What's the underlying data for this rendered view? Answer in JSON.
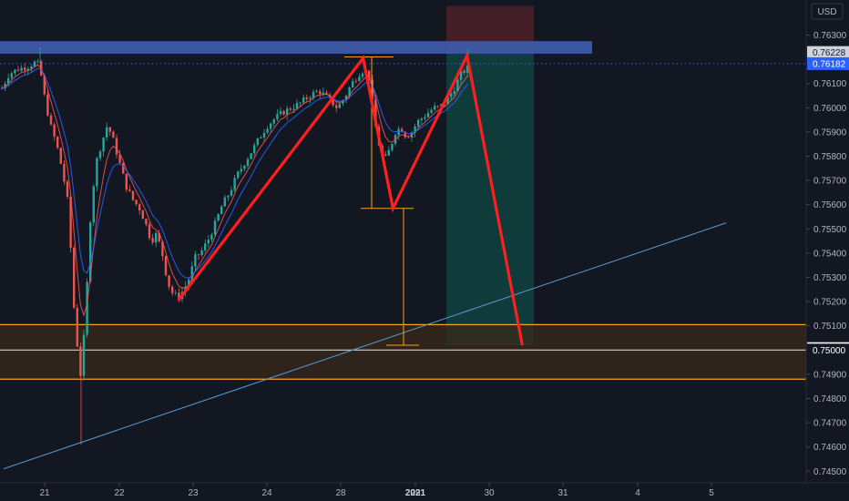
{
  "chart_data": {
    "type": "candlestick",
    "currency_label": "USD",
    "ylim": [
      0.7446,
      0.7642
    ],
    "y_ticks": [
      "0.76300",
      "0.76100",
      "0.76000",
      "0.75900",
      "0.75800",
      "0.75700",
      "0.75600",
      "0.75500",
      "0.75400",
      "0.75300",
      "0.75200",
      "0.75100",
      "0.74900",
      "0.74800",
      "0.74700",
      "0.74600",
      "0.74500"
    ],
    "x_ticks": [
      "21",
      "22",
      "23",
      "24",
      "28",
      "29",
      "30",
      "31",
      "2021",
      "4",
      "5"
    ],
    "price_tags": [
      {
        "label": "0.76228",
        "value": 0.76228,
        "bg": "#d1d4dc",
        "fg": "#131722"
      },
      {
        "label": "0.76182",
        "value": 0.76182,
        "bg": "#2962ff",
        "fg": "#ffffff"
      },
      {
        "label": "0.75006",
        "value": 0.75006,
        "bg": "#ffffff",
        "fg": "#131722"
      },
      {
        "label": "0.75000",
        "value": 0.75,
        "bg": "#131722",
        "fg": "#ffffff"
      }
    ],
    "current_price": 0.76182,
    "resistance_zone": [
      0.76223,
      0.76275
    ],
    "support_zone": {
      "top": 0.75105,
      "bottom": 0.7488,
      "mid": 0.75
    },
    "pattern_points": [
      {
        "day": "22.8",
        "price": 0.75205
      },
      {
        "day": "28.3",
        "price": 0.76205
      },
      {
        "day": "28.7",
        "price": 0.75585
      },
      {
        "day": "29.7",
        "price": 0.76215
      },
      {
        "day": "30.45",
        "price": 0.7502
      }
    ],
    "measure_lines": {
      "top": 0.7621,
      "mid": 0.75585,
      "bottom": 0.7502
    },
    "trendline": [
      {
        "day": "20.6",
        "price": 0.7451
      },
      {
        "day": "5.2",
        "price": 0.75525
      }
    ],
    "colors": {
      "up": "#26a69a",
      "down": "#ef5350",
      "red": "#ff1f1f",
      "orange": "#f7a21a",
      "blue_zone": "#3d5aa8",
      "trend": "#5b9bd5",
      "ma_red": "#ef5350",
      "ma_blue": "#2962ff",
      "profit": "#10423f",
      "loss": "#4a1f27"
    }
  }
}
